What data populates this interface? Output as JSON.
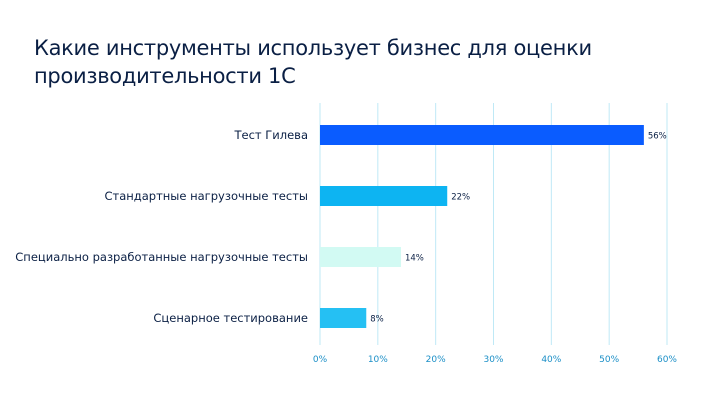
{
  "chart_data": {
    "type": "bar",
    "orientation": "horizontal",
    "title": "Какие инструменты использует бизнес для оценки производительности 1С",
    "categories": [
      "Тест Гилева",
      "Стандартные нагрузочные тесты",
      "Специально разработанные нагрузочные тесты",
      "Сценарное тестирование"
    ],
    "values": [
      56,
      22,
      14,
      8
    ],
    "value_labels": [
      "56%",
      "22%",
      "14%",
      "8%"
    ],
    "bar_colors": [
      "#0a5cff",
      "#0db4f2",
      "#d2faf3",
      "#25c0f3"
    ],
    "xlim": [
      0,
      60
    ],
    "x_ticks": [
      0,
      10,
      20,
      30,
      40,
      50,
      60
    ],
    "x_tick_labels": [
      "0%",
      "10%",
      "20%",
      "30%",
      "40%",
      "50%",
      "60%"
    ],
    "xlabel": "",
    "ylabel": "",
    "grid": true,
    "legend": "none"
  }
}
